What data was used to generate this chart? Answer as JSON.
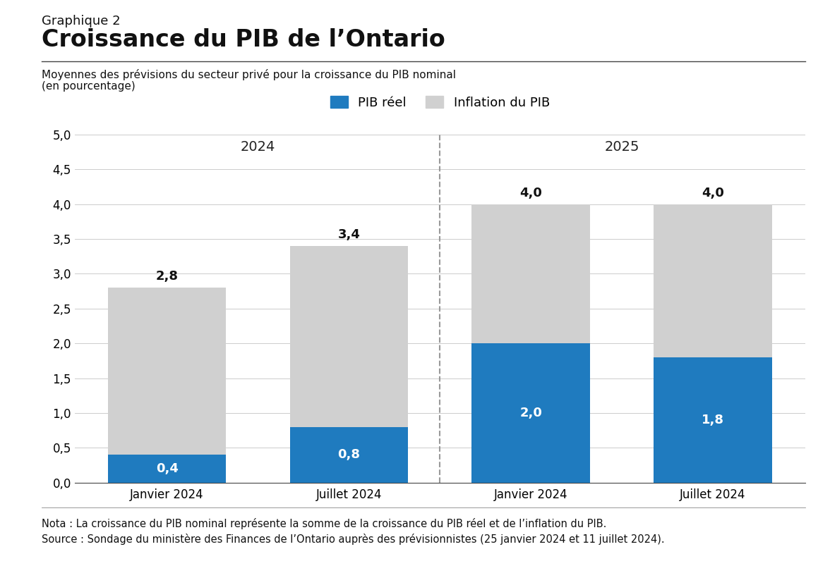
{
  "title_line1": "Graphique 2",
  "title_line2": "Croissance du PIB de l’Ontario",
  "subtitle_line1": "Moyennes des prévisions du secteur privé pour la croissance du PIB nominal",
  "subtitle_line2": "(en pourcentage)",
  "categories": [
    "Janvier 2024",
    "Juillet 2024",
    "Janvier 2024",
    "Juillet 2024"
  ],
  "pib_reel": [
    0.4,
    0.8,
    2.0,
    1.8
  ],
  "inflation_pib": [
    2.4,
    2.6,
    2.0,
    2.2
  ],
  "totals": [
    2.8,
    3.4,
    4.0,
    4.0
  ],
  "pib_reel_labels": [
    "0,4",
    "0,8",
    "2,0",
    "1,8"
  ],
  "totals_labels": [
    "2,8",
    "3,4",
    "4,0",
    "4,0"
  ],
  "year_labels": [
    "2024",
    "2025"
  ],
  "color_blue": "#1f7bbf",
  "color_gray": "#d0d0d0",
  "background_color": "#ffffff",
  "nota_text": "Nota : La croissance du PIB nominal représente la somme de la croissance du PIB réel et de l’inflation du PIB.",
  "source_text": "Source : Sondage du ministère des Finances de l’Ontario auprès des prévisionnistes (25 janvier 2024 et 11 juillet 2024).",
  "legend_pib_reel": "PIB réel",
  "legend_inflation": "Inflation du PIB",
  "ylim": [
    0,
    5.0
  ],
  "yticks": [
    0.0,
    0.5,
    1.0,
    1.5,
    2.0,
    2.5,
    3.0,
    3.5,
    4.0,
    4.5,
    5.0
  ],
  "bar_width": 0.65,
  "dashed_line_x": 1.5
}
